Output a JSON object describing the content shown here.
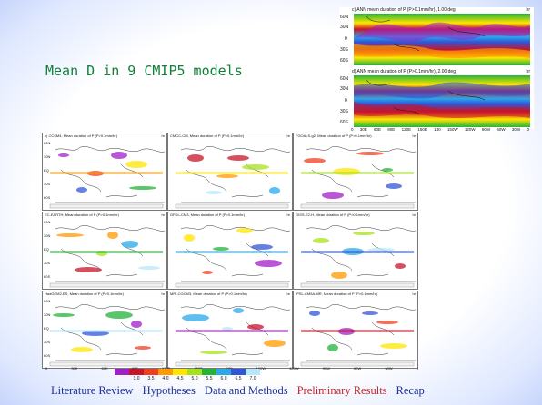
{
  "slide_title": "Mean D in 9 CMIP5 models",
  "observed": [
    {
      "caption": "c) ANN mean duration of  P (P>0.1mm/hr), 1.00 deg",
      "unit": "hr"
    },
    {
      "caption": "d) ANN mean duration of  P (P>0.1mm/hr), 2.00 deg",
      "unit": "hr"
    }
  ],
  "observed_lat_labels": [
    "60N",
    "30N",
    "0",
    "30S",
    "60S"
  ],
  "observed_lon_labels": [
    "0",
    "30E",
    "60E",
    "90E",
    "120E",
    "150E",
    "180",
    "150W",
    "120W",
    "90W",
    "60W",
    "30W",
    "0"
  ],
  "model_lat_labels": [
    "60N",
    "30N",
    "EQ",
    "30S",
    "60S"
  ],
  "model_lon_labels": [
    "0",
    "30E",
    "60E",
    "90E",
    "120E",
    "150E",
    "180",
    "150W",
    "120W",
    "90W",
    "60W",
    "30W",
    "0"
  ],
  "models": [
    {
      "caption": "c) CCSM4, Mean duration of P (P>0.1mm/hr)",
      "unit": "hr"
    },
    {
      "caption": "CMCC-CM, Mean duration of P (P>0.1mm/hr)",
      "unit": "hr"
    },
    {
      "caption": "FGOALS-g2, Mean duration of P (P>0.1mm/hr)",
      "unit": "hr"
    },
    {
      "caption": "EC-EARTH, Mean duration of P (P>0.1mm/hr)",
      "unit": "hr"
    },
    {
      "caption": "GFDL-CM3, Mean duration of P (P>0.1mm/hr)",
      "unit": "hr"
    },
    {
      "caption": "GISS-E2-H, Mean duration of P (P>0.1mm/hr)",
      "unit": "hr"
    },
    {
      "caption": "HadGEM2-ES, Mean duration of P (P>0.1mm/hr)",
      "unit": "hr"
    },
    {
      "caption": "MRI-CGCM3, Mean duration of P (P>0.1mm/hr)",
      "unit": "hr"
    },
    {
      "caption": "IPSL-CM5A-MR, Mean duration of P (P>0.1mm/hr)",
      "unit": "hr"
    }
  ],
  "colorbar": {
    "ticks": [
      "3.0",
      "3.5",
      "4.0",
      "4.5",
      "5.0",
      "5.5",
      "6.0",
      "6.5",
      "7.0"
    ],
    "colors": [
      "#a020c8",
      "#c8142a",
      "#ef3f20",
      "#ff9a00",
      "#ffe600",
      "#a6e21b",
      "#22b33a",
      "#2aa8e8",
      "#3055d8",
      "#b7e7fb"
    ]
  },
  "nav": [
    {
      "label": "Literature Review",
      "active": false
    },
    {
      "label": "Hypotheses",
      "active": false
    },
    {
      "label": "Data and Methods",
      "active": false
    },
    {
      "label": "Preliminary Results",
      "active": true
    },
    {
      "label": "Recap",
      "active": false
    }
  ]
}
